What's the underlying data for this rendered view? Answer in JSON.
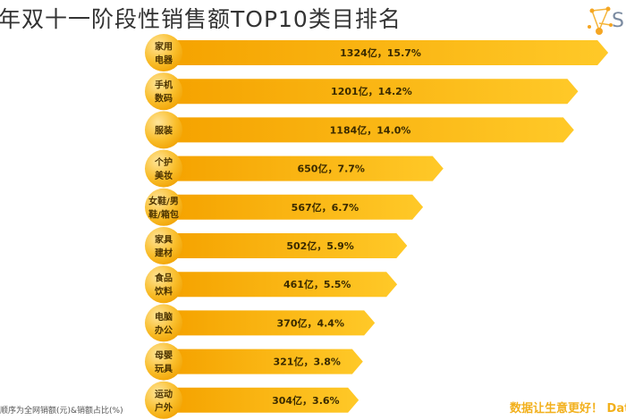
{
  "header": {
    "title": "年双十一阶段性销售额TOP10类目排名",
    "logo_text": "S"
  },
  "footer": {
    "footnote": "顺序为全网销额(元)&销额占比(%)",
    "tagline": "数据让生意更好！ Data tu"
  },
  "colors": {
    "bar_start": "#f5a300",
    "bar_end": "#ffc928",
    "circle": "#f7b515",
    "text": "#3a2a00"
  },
  "chart_data": {
    "type": "bar",
    "orientation": "horizontal",
    "title": "年双十一阶段性销售额TOP10类目排名",
    "categories": [
      [
        "家用",
        "电器"
      ],
      [
        "手机",
        "数码"
      ],
      [
        "服装"
      ],
      [
        "个护",
        "美妆"
      ],
      [
        "女鞋/男",
        "鞋/箱包"
      ],
      [
        "家具",
        "建材"
      ],
      [
        "食品",
        "饮料"
      ],
      [
        "电脑",
        "办公"
      ],
      [
        "母婴",
        "玩具"
      ],
      [
        "运动",
        "户外"
      ]
    ],
    "values": [
      1324,
      1201,
      1184,
      650,
      567,
      502,
      461,
      370,
      321,
      304
    ],
    "shares": [
      15.7,
      14.2,
      14.0,
      7.7,
      6.7,
      5.9,
      5.5,
      4.4,
      3.8,
      3.6
    ],
    "data_labels": [
      "1324亿，15.7%",
      "1201亿，14.2%",
      "1184亿，14.0%",
      "650亿，7.7%",
      "567亿，6.7%",
      "502亿，5.9%",
      "461亿，5.5%",
      "370亿，4.4%",
      "321亿，3.8%",
      "304亿，3.6%"
    ],
    "value_unit": "亿"
  }
}
